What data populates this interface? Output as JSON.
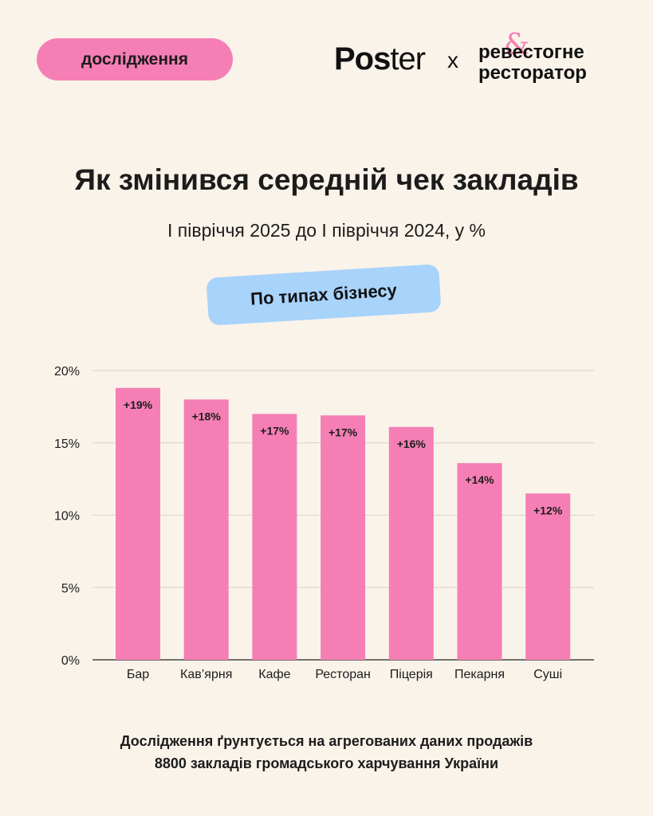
{
  "header": {
    "tag_label": "дослідження",
    "logo_poster_part1": "Pos",
    "logo_poster_part2": "ter",
    "logo_separator": "x",
    "logo_partner_line1": "ревестогне",
    "logo_partner_line2": "ресторатор",
    "logo_partner_symbol": "&"
  },
  "title": "Як змінився середній чек закладів",
  "subtitle": "І півріччя 2025 до І півріччя 2024, у %",
  "filter_pill": "По типах бізнесу",
  "footer": {
    "line1": "Дослідження ґрунтується на агрегованих даних продажів",
    "line2": "8800 закладів громадського харчування України"
  },
  "colors": {
    "bar": "#f57fb5",
    "pill": "#a8d3fb",
    "background": "#faf3ea",
    "grid": "#d9d2c8"
  },
  "chart_data": {
    "type": "bar",
    "categories": [
      "Бар",
      "Кав’ярня",
      "Кафе",
      "Ресторан",
      "Піцерія",
      "Пекарня",
      "Суші"
    ],
    "values": [
      18.8,
      18.0,
      17.0,
      16.9,
      16.1,
      13.6,
      11.5
    ],
    "data_labels": [
      "+19%",
      "+18%",
      "+17%",
      "+17%",
      "+16%",
      "+14%",
      "+12%"
    ],
    "y_ticks": [
      0,
      5,
      10,
      15,
      20
    ],
    "y_tick_labels": [
      "0%",
      "5%",
      "10%",
      "15%",
      "20%"
    ],
    "ylim": [
      0,
      20
    ],
    "grid": true,
    "legend": "none"
  }
}
